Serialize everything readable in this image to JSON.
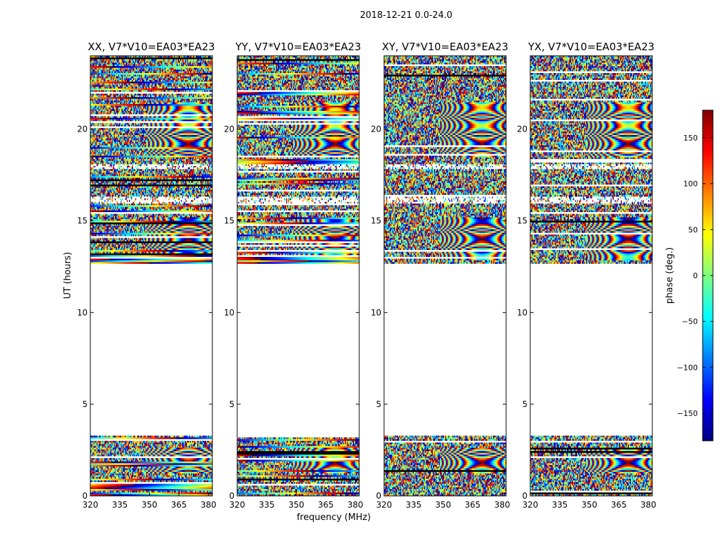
{
  "chart_data": {
    "type": "heatmap",
    "suptitle": "2018-12-21 0.0-24.0",
    "xlabel": "frequency (MHz)",
    "ylabel": "UT (hours)",
    "xlim": [
      320,
      382
    ],
    "ylim": [
      0,
      24
    ],
    "xticks": [
      320,
      335,
      350,
      365,
      380
    ],
    "yticks": [
      0,
      5,
      10,
      15,
      20
    ],
    "colorbar": {
      "label": "phase (deg.)",
      "range": [
        -180,
        180
      ],
      "ticks": [
        150,
        100,
        50,
        0,
        -50,
        -100,
        -150
      ],
      "tick_labels": [
        "150",
        "100",
        "50",
        "0",
        "−50",
        "−100",
        "−150"
      ],
      "colormap_stops": [
        "#00007f",
        "#0000ff",
        "#007fff",
        "#00ffff",
        "#7fff7f",
        "#ffff00",
        "#ff7f00",
        "#ff0000",
        "#7f0000"
      ]
    },
    "data_coverage_hours": [
      [
        0.0,
        3.3
      ],
      [
        12.7,
        24.0
      ]
    ],
    "flag_gaps_hours": [
      [
        15.9,
        16.3
      ],
      [
        17.8,
        18.1
      ]
    ],
    "panels": [
      {
        "id": "xx",
        "title": "XX, V7*V10=EA03*EA23",
        "polarization": "XX",
        "show_ytick_labels": true
      },
      {
        "id": "yy",
        "title": "YY, V7*V10=EA03*EA23",
        "polarization": "YY",
        "show_ytick_labels": true
      },
      {
        "id": "xy",
        "title": "XY, V7*V10=EA03*EA23",
        "polarization": "XY",
        "show_ytick_labels": true
      },
      {
        "id": "yx",
        "title": "YX, V7*V10=EA03*EA23",
        "polarization": "YX",
        "show_ytick_labels": true
      }
    ]
  }
}
